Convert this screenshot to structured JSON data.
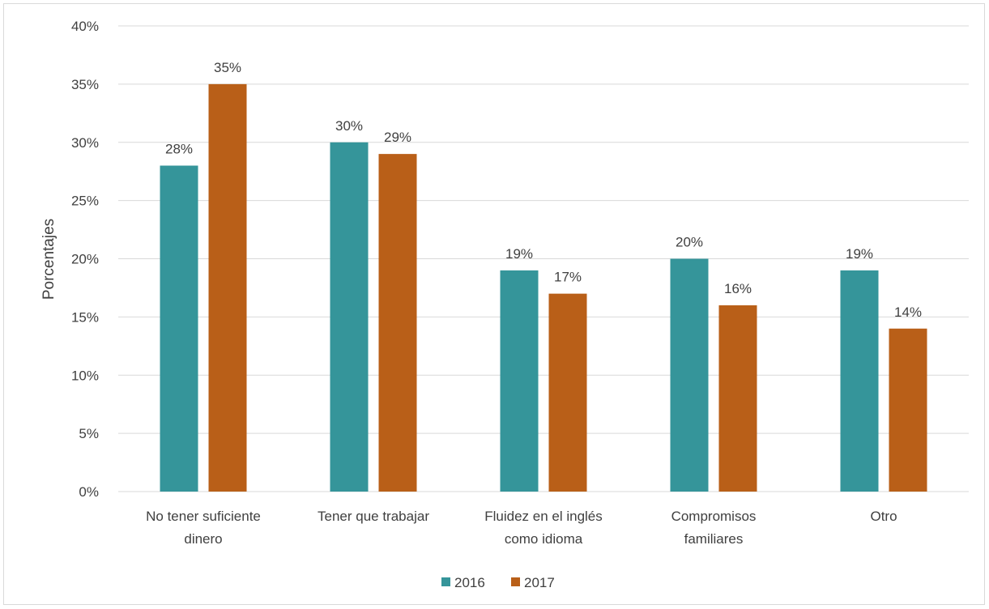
{
  "chart_data": {
    "type": "bar",
    "title": "",
    "xlabel": "",
    "ylabel": "Porcentajes",
    "ylim": [
      0,
      40
    ],
    "yticks": [
      "0%",
      "5%",
      "10%",
      "15%",
      "20%",
      "25%",
      "30%",
      "35%",
      "40%"
    ],
    "categories": [
      [
        "No tener suficiente",
        "dinero"
      ],
      [
        "Tener que trabajar"
      ],
      [
        "Fluidez en el inglés",
        "como idioma"
      ],
      [
        "Compromisos",
        "familiares"
      ],
      [
        "Otro"
      ]
    ],
    "series": [
      {
        "name": "2016",
        "color": "#35959a",
        "values": [
          28,
          30,
          19,
          20,
          19
        ],
        "labels": [
          "28%",
          "30%",
          "19%",
          "20%",
          "19%"
        ]
      },
      {
        "name": "2017",
        "color": "#b95f18",
        "values": [
          35,
          29,
          17,
          16,
          14
        ],
        "labels": [
          "35%",
          "29%",
          "17%",
          "16%",
          "14%"
        ]
      }
    ],
    "grid": true,
    "legend_position": "bottom"
  }
}
